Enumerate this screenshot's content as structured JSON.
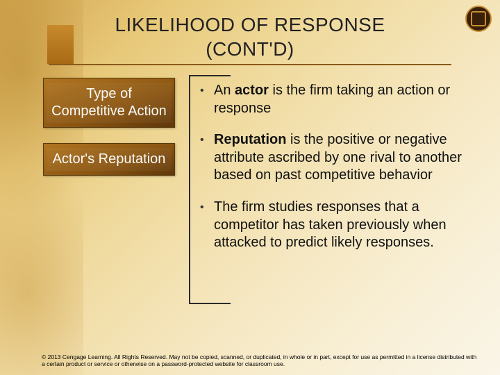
{
  "title_line1": "LIKELIHOOD OF RESPONSE",
  "title_line2": "(CONT'D)",
  "boxes": [
    {
      "label": "Type of Competitive Action"
    },
    {
      "label": "Actor's Reputation"
    }
  ],
  "bullets": [
    {
      "html": "An <b>actor</b> is the firm taking an action or response"
    },
    {
      "html": "<b>Reputation</b> is the positive or negative attribute ascribed by one rival to another based on past competitive behavior"
    },
    {
      "html": "The firm studies responses that a competitor has taken previously when attacked to predict likely responses."
    }
  ],
  "footer": "© 2013 Cengage Learning. All Rights Reserved. May not be copied, scanned, or duplicated, in whole or in part, except for use as permitted in a license distributed with a certain product or service or otherwise on a password-protected website for classroom use.",
  "colors": {
    "title_underline": "#8a5a1a",
    "box_gradient_from": "#b07520",
    "box_gradient_to": "#5e370a",
    "bracket": "#2a2a2a"
  }
}
